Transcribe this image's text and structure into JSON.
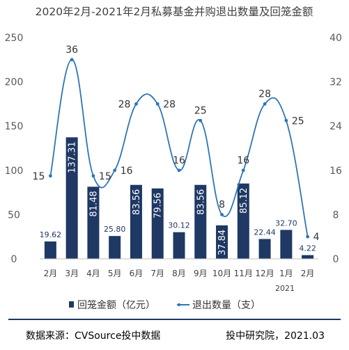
{
  "title": "2020年2月-2021年2月私募基金并购退出数量及回笼金额",
  "footer": {
    "source": "数据来源：CVSource投中数据",
    "credit": "投中研究院，2021.03"
  },
  "colors": {
    "bar": "#1F3864",
    "line": "#2E75B6",
    "axis_text": "#595959",
    "footer_rule": "#1F3864"
  },
  "chart_data": {
    "type": "bar+line",
    "categories": [
      "2月",
      "3月",
      "4月",
      "5月",
      "6月",
      "7月",
      "8月",
      "9月",
      "10月",
      "11月",
      "12月",
      "1月",
      "2月"
    ],
    "year_label": "2021",
    "series": [
      {
        "name": "回笼金额（亿元）",
        "type": "bar",
        "axis": "left",
        "values": [
          19.62,
          137.31,
          81.48,
          25.8,
          83.56,
          79.56,
          30.12,
          83.56,
          37.84,
          85.12,
          22.44,
          32.7,
          4.22
        ],
        "labels": [
          "19.62",
          "137.31",
          "81.48",
          "25.80",
          "83.56",
          "79.56",
          "30.12",
          "83.56",
          "37.84",
          "85.12",
          "22.44",
          "32.70",
          "4.22"
        ]
      },
      {
        "name": "退出数量（支）",
        "type": "line",
        "smooth": true,
        "axis": "right",
        "values": [
          15,
          36,
          15,
          16,
          28,
          28,
          16,
          25,
          8,
          16,
          28,
          25,
          4
        ],
        "labels": [
          "15",
          "36",
          "15",
          "16",
          "28",
          "28",
          "16",
          "25",
          "8",
          "16",
          "28",
          "25",
          "4"
        ]
      }
    ],
    "y_left": {
      "ylim": [
        0,
        250
      ],
      "ticks": [
        "0",
        "50",
        "100",
        "150",
        "200",
        "250"
      ]
    },
    "y_right": {
      "ylim": [
        0,
        40
      ],
      "ticks": [
        "0",
        "8",
        "16",
        "24",
        "32",
        "40"
      ]
    },
    "grid": false,
    "legend_position": "bottom"
  }
}
